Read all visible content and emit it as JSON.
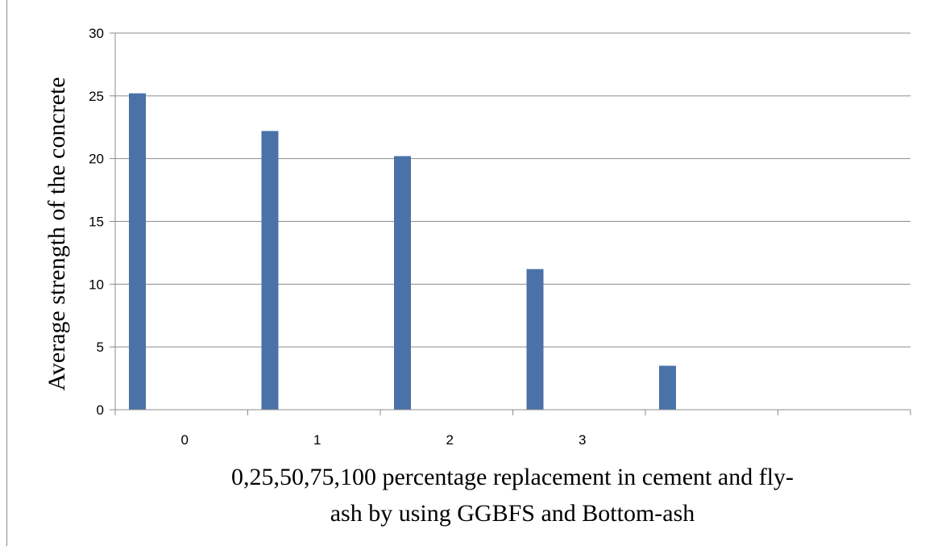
{
  "chart_data": {
    "type": "bar",
    "categories": [
      "0",
      "1",
      "2",
      "3",
      "",
      ""
    ],
    "values": [
      25.2,
      22.2,
      20.2,
      11.2,
      3.5,
      null
    ],
    "xlabel_lines": [
      "0,25,50,75,100 percentage replacement in cement and fly-",
      "ash by using GGBFS and Bottom-ash"
    ],
    "ylabel": "Average strength of the concrete",
    "ylim": [
      0,
      30
    ],
    "yticks": [
      0,
      5,
      10,
      15,
      20,
      25,
      30
    ],
    "grid": true,
    "legend": "none",
    "bar_color": "#4a72a8"
  }
}
